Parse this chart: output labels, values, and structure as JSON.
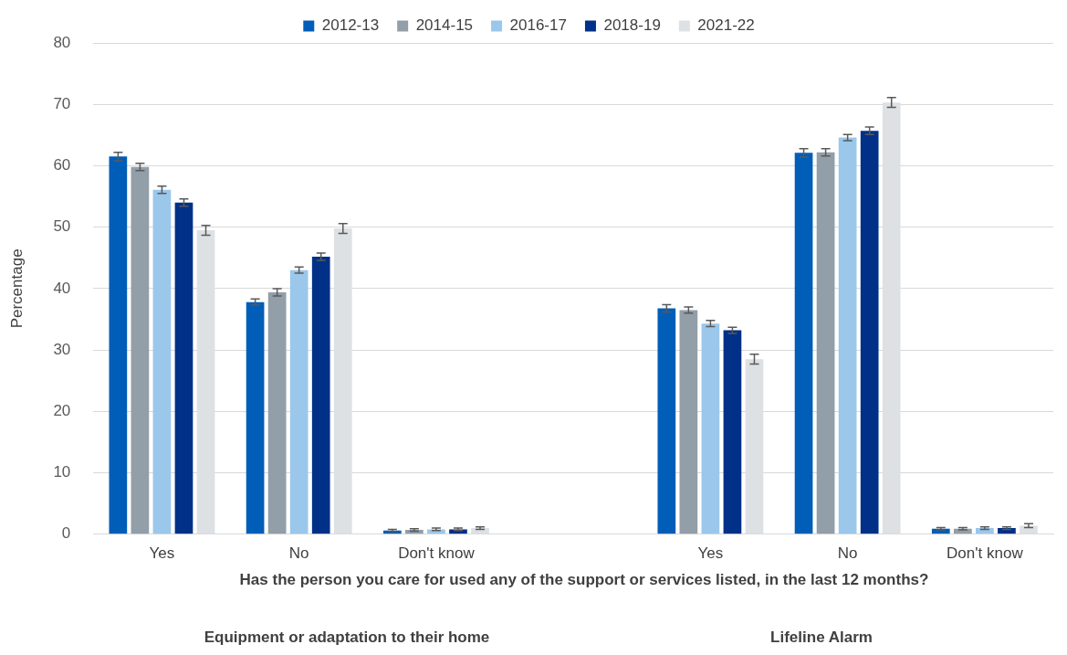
{
  "chart_data": {
    "type": "bar",
    "xlabel": "Has the person you care for used any of the support or services listed, in the last 12 months?",
    "ylabel": "Percentage",
    "categories": [
      "Yes",
      "No",
      "Don't know",
      null,
      "Yes",
      "No",
      "Don't know"
    ],
    "series": [
      {
        "name": "2012-13",
        "color": "#005eb8",
        "values": [
          61.5,
          37.8,
          0.6,
          null,
          36.8,
          62.1,
          0.9
        ],
        "errors": [
          0.7,
          0.5,
          0.2,
          null,
          0.6,
          0.7,
          0.2
        ]
      },
      {
        "name": "2014-15",
        "color": "#929ea8",
        "values": [
          59.8,
          39.4,
          0.7,
          null,
          36.5,
          62.2,
          0.9
        ],
        "errors": [
          0.6,
          0.6,
          0.2,
          null,
          0.5,
          0.6,
          0.2
        ]
      },
      {
        "name": "2016-17",
        "color": "#9bc7eb",
        "values": [
          56.1,
          43.0,
          0.8,
          null,
          34.3,
          64.6,
          1.0
        ],
        "errors": [
          0.6,
          0.5,
          0.2,
          null,
          0.5,
          0.5,
          0.2
        ]
      },
      {
        "name": "2018-19",
        "color": "#003087",
        "values": [
          54.0,
          45.2,
          0.8,
          null,
          33.2,
          65.7,
          1.0
        ],
        "errors": [
          0.6,
          0.6,
          0.2,
          null,
          0.5,
          0.6,
          0.2
        ]
      },
      {
        "name": "2021-22",
        "color": "#dde1e4",
        "values": [
          49.5,
          49.8,
          1.0,
          null,
          28.5,
          70.3,
          1.4
        ],
        "errors": [
          0.8,
          0.8,
          0.2,
          null,
          0.8,
          0.8,
          0.3
        ]
      }
    ],
    "ylim": [
      0,
      80
    ],
    "yticks": [
      0,
      10,
      20,
      30,
      40,
      50,
      60,
      70,
      80
    ],
    "grid": "y",
    "legend": "top",
    "annotations": [
      "Equipment or adaptation to their home",
      "Lifeline Alarm"
    ]
  }
}
